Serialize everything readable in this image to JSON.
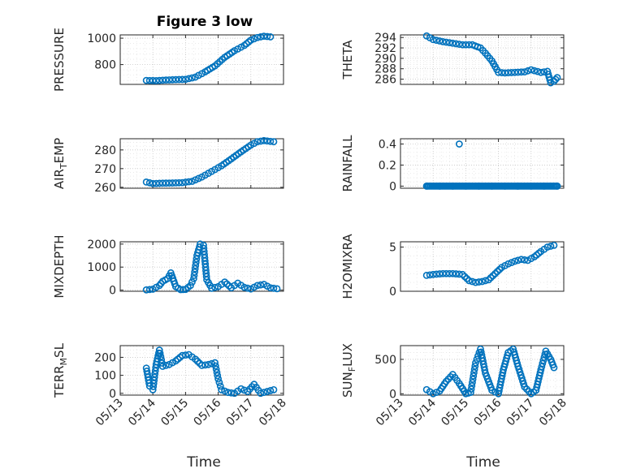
{
  "figure_title": "Figure 3 low",
  "x_label": "Time",
  "x_tick_labels": [
    "05/13",
    "05/14",
    "05/15",
    "05/16",
    "05/17",
    "05/18"
  ],
  "marker_color": "#0072BD",
  "chart_data": [
    {
      "type": "scatter",
      "ylabel": "PRESSURE",
      "ylim": [
        650,
        1025
      ],
      "yticks": [
        800,
        1000
      ],
      "xlim": [
        "05/13",
        "05/18"
      ],
      "x": [
        13.8,
        14.1,
        14.4,
        14.7,
        15.0,
        15.3,
        15.6,
        15.9,
        16.2,
        16.5,
        16.8,
        17.0,
        17.2,
        17.4,
        17.6
      ],
      "y": [
        680,
        678,
        683,
        686,
        688,
        705,
        745,
        790,
        855,
        905,
        945,
        985,
        1005,
        1015,
        1010
      ]
    },
    {
      "type": "scatter",
      "ylabel": "THETA",
      "ylim": [
        285,
        294.5
      ],
      "yticks": [
        286,
        288,
        290,
        292,
        294
      ],
      "xlim": [
        "05/13",
        "05/18"
      ],
      "x": [
        13.8,
        14.0,
        14.3,
        14.6,
        14.9,
        15.2,
        15.45,
        15.6,
        15.8,
        16.0,
        16.2,
        16.5,
        16.8,
        17.0,
        17.3,
        17.5,
        17.6,
        17.7,
        17.8
      ],
      "y": [
        294.3,
        293.6,
        293.2,
        292.9,
        292.6,
        292.6,
        292.0,
        291.0,
        289.5,
        287.3,
        287.2,
        287.3,
        287.4,
        287.8,
        287.3,
        287.5,
        285.3,
        285.6,
        286.3
      ]
    },
    {
      "type": "scatter",
      "ylabel": "AIR_TEMP",
      "ylim": [
        259.5,
        286
      ],
      "yticks": [
        260,
        270,
        280
      ],
      "xlim": [
        "05/13",
        "05/18"
      ],
      "x": [
        13.8,
        14.0,
        14.3,
        14.6,
        14.9,
        15.2,
        15.5,
        15.8,
        16.1,
        16.4,
        16.7,
        17.0,
        17.2,
        17.4,
        17.6,
        17.7
      ],
      "y": [
        262.8,
        262.0,
        262.2,
        262.3,
        262.5,
        263.2,
        265.5,
        268.5,
        271.5,
        275.2,
        279.0,
        282.6,
        284.4,
        285.0,
        284.6,
        284.4
      ]
    },
    {
      "type": "scatter",
      "ylabel": "RAINFALL",
      "ylim": [
        -0.02,
        0.45
      ],
      "yticks": [
        0,
        0.2,
        0.4
      ],
      "xlim": [
        "05/13",
        "05/18"
      ],
      "x": [
        13.8,
        14.2,
        14.6,
        14.8,
        15.0,
        15.4,
        15.8,
        16.2,
        16.6,
        17.0,
        17.4,
        17.8
      ],
      "y": [
        0,
        0,
        0,
        0.4,
        0,
        0,
        0,
        0,
        0,
        0,
        0,
        0
      ]
    },
    {
      "type": "scatter",
      "ylabel": "MIXDEPTH",
      "ylim": [
        -50,
        2100
      ],
      "yticks": [
        0,
        1000,
        2000
      ],
      "xlim": [
        "05/13",
        "05/18"
      ],
      "x": [
        13.8,
        14.0,
        14.2,
        14.3,
        14.45,
        14.55,
        14.7,
        14.85,
        15.0,
        15.15,
        15.25,
        15.35,
        15.45,
        15.55,
        15.65,
        15.8,
        16.0,
        16.2,
        16.4,
        16.6,
        16.8,
        17.0,
        17.2,
        17.4,
        17.6,
        17.8
      ],
      "y": [
        10,
        40,
        200,
        380,
        500,
        750,
        150,
        20,
        30,
        200,
        500,
        1500,
        2000,
        1950,
        450,
        80,
        150,
        350,
        100,
        300,
        120,
        50,
        200,
        250,
        100,
        60
      ]
    },
    {
      "type": "scatter",
      "ylabel": "H2OMIXRA",
      "ylim": [
        0,
        5.6
      ],
      "yticks": [
        0,
        5
      ],
      "xlim": [
        "05/13",
        "05/18"
      ],
      "x": [
        13.8,
        14.0,
        14.3,
        14.6,
        14.9,
        15.1,
        15.3,
        15.5,
        15.7,
        15.9,
        16.1,
        16.3,
        16.5,
        16.7,
        16.9,
        17.1,
        17.3,
        17.5,
        17.7
      ],
      "y": [
        1.8,
        1.9,
        2.0,
        2.0,
        1.9,
        1.2,
        1.0,
        1.1,
        1.3,
        2.0,
        2.7,
        3.1,
        3.4,
        3.6,
        3.5,
        3.9,
        4.5,
        5.0,
        5.2
      ]
    },
    {
      "type": "scatter",
      "ylabel": "TERR_MSL",
      "ylim": [
        -10,
        265
      ],
      "yticks": [
        0,
        100,
        200
      ],
      "xlim": [
        "05/13",
        "05/18"
      ],
      "x": [
        13.8,
        13.9,
        14.0,
        14.1,
        14.2,
        14.3,
        14.5,
        14.7,
        14.9,
        15.1,
        15.3,
        15.5,
        15.7,
        15.9,
        16.0,
        16.1,
        16.3,
        16.5,
        16.7,
        16.9,
        17.1,
        17.3,
        17.5,
        17.7
      ],
      "y": [
        140,
        40,
        20,
        160,
        240,
        150,
        160,
        180,
        210,
        215,
        190,
        155,
        160,
        170,
        80,
        20,
        5,
        0,
        25,
        10,
        50,
        0,
        10,
        20
      ]
    },
    {
      "type": "scatter",
      "ylabel": "SUN_FLUX",
      "ylim": [
        -20,
        700
      ],
      "yticks": [
        0,
        500
      ],
      "xlim": [
        "05/13",
        "05/18"
      ],
      "x": [
        13.8,
        14.0,
        14.2,
        14.4,
        14.6,
        14.8,
        15.0,
        15.15,
        15.3,
        15.45,
        15.6,
        15.8,
        16.0,
        16.15,
        16.3,
        16.45,
        16.6,
        16.8,
        17.0,
        17.15,
        17.3,
        17.45,
        17.6,
        17.7
      ],
      "y": [
        60,
        0,
        40,
        180,
        280,
        150,
        0,
        20,
        450,
        650,
        300,
        50,
        0,
        350,
        600,
        650,
        400,
        100,
        0,
        50,
        350,
        620,
        500,
        380
      ]
    }
  ]
}
